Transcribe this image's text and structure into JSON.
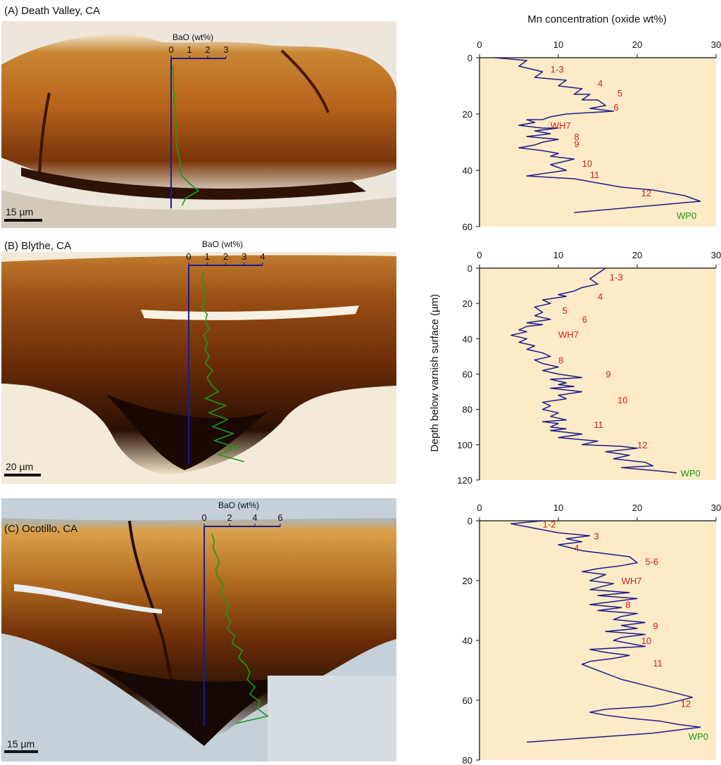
{
  "chart_data": [
    {
      "type": "line",
      "panel": "A",
      "title": "(A) Death Valley, CA",
      "xlabel": "Mn concentration (oxide wt%)",
      "ylabel": "",
      "xlim": [
        0,
        30
      ],
      "ylim": [
        0,
        60
      ],
      "y_inverted": true,
      "xticks": [
        0,
        10,
        20,
        30
      ],
      "yticks": [
        0,
        20,
        40,
        60
      ],
      "series": [
        {
          "name": "",
          "color": "#1c1c8c",
          "x": [
            2,
            6,
            5,
            8,
            7,
            11,
            10,
            13,
            12,
            14,
            13,
            15,
            16,
            14,
            17,
            11,
            9,
            8,
            6,
            7,
            5,
            8,
            10,
            7,
            9,
            6,
            10,
            8,
            7,
            5,
            8,
            10,
            9,
            12,
            9,
            11,
            6,
            12,
            14,
            18,
            22,
            26,
            28,
            24,
            20,
            12
          ],
          "y": [
            0,
            1,
            3,
            5,
            7,
            8,
            10,
            11,
            13,
            13,
            15,
            15,
            17,
            18,
            19,
            20,
            21,
            22,
            22,
            23,
            24,
            25,
            25,
            26,
            27,
            28,
            29,
            30,
            31,
            32,
            33,
            34,
            35,
            36,
            38,
            40,
            42,
            43,
            44,
            46,
            47,
            49,
            51,
            52,
            53,
            55
          ]
        }
      ],
      "labels": [
        {
          "text": "1-3",
          "x": 9,
          "y": 4
        },
        {
          "text": "4",
          "x": 15,
          "y": 9
        },
        {
          "text": "5",
          "x": 17.5,
          "y": 12.5
        },
        {
          "text": "6",
          "x": 17,
          "y": 17.5
        },
        {
          "text": "WH7",
          "x": 9,
          "y": 24
        },
        {
          "text": "8",
          "x": 12,
          "y": 28
        },
        {
          "text": "9",
          "x": 12,
          "y": 30.5
        },
        {
          "text": "10",
          "x": 13,
          "y": 37.5
        },
        {
          "text": "11",
          "x": 14,
          "y": 41.5
        },
        {
          "text": "12",
          "x": 20.5,
          "y": 48
        }
      ],
      "end_label": {
        "text": "WP0",
        "x": 25,
        "y": 56
      },
      "bao": {
        "label": "BaO (wt%)",
        "ticks": [
          0,
          1,
          2,
          3
        ],
        "xmax": 3,
        "scale_bar": "15 µm",
        "profile": [
          0.1,
          0.1,
          0.15,
          0.1,
          0.2,
          0.15,
          0.25,
          0.2,
          0.3,
          0.25,
          0.35,
          0.3,
          0.4,
          0.5,
          0.45,
          0.6,
          1.0,
          1.5,
          0.8,
          0.6
        ]
      }
    },
    {
      "type": "line",
      "panel": "B",
      "title": "(B) Blythe, CA",
      "xlabel": "",
      "ylabel": "Depth below varnish surface (µm)",
      "xlim": [
        0,
        30
      ],
      "ylim": [
        0,
        120
      ],
      "y_inverted": true,
      "xticks": [
        0,
        10,
        20,
        30
      ],
      "yticks": [
        0,
        20,
        40,
        60,
        80,
        100,
        120
      ],
      "series": [
        {
          "name": "",
          "color": "#1c1c8c",
          "x": [
            16,
            15,
            14,
            15,
            13,
            12,
            10,
            11,
            8,
            9,
            7,
            8,
            7,
            9,
            6,
            8,
            6,
            5,
            6,
            5,
            4,
            6,
            5,
            7,
            6,
            8,
            9,
            7,
            8,
            10,
            8,
            10,
            13,
            9,
            11,
            10,
            12,
            9,
            13,
            10,
            11,
            8,
            9,
            8,
            10,
            9,
            11,
            8,
            10,
            9,
            11,
            9,
            13,
            10,
            15,
            13,
            18,
            20,
            16,
            19,
            17,
            21,
            22,
            18,
            23,
            25
          ],
          "y": [
            0,
            3,
            6,
            9,
            11,
            13,
            15,
            16,
            18,
            20,
            22,
            25,
            27,
            29,
            31,
            32,
            33,
            35,
            36,
            37,
            38,
            40,
            42,
            44,
            46,
            48,
            50,
            52,
            54,
            56,
            58,
            60,
            62,
            63,
            65,
            66,
            67,
            68,
            70,
            72,
            74,
            76,
            78,
            80,
            82,
            84,
            86,
            87,
            88,
            90,
            91,
            92,
            94,
            96,
            98,
            100,
            101,
            102,
            104,
            106,
            108,
            110,
            112,
            113,
            115,
            116
          ]
        }
      ],
      "labels": [
        {
          "text": "1-3",
          "x": 16.5,
          "y": 5
        },
        {
          "text": "4",
          "x": 15,
          "y": 16
        },
        {
          "text": "5",
          "x": 10.5,
          "y": 24
        },
        {
          "text": "6",
          "x": 13,
          "y": 29
        },
        {
          "text": "WH7",
          "x": 10,
          "y": 37.5
        },
        {
          "text": "8",
          "x": 10,
          "y": 52
        },
        {
          "text": "9",
          "x": 16,
          "y": 60
        },
        {
          "text": "10",
          "x": 17.5,
          "y": 74.5
        },
        {
          "text": "11",
          "x": 14.5,
          "y": 88.5
        },
        {
          "text": "12",
          "x": 20,
          "y": 100
        }
      ],
      "end_label": {
        "text": "WP0",
        "x": 25.5,
        "y": 116
      },
      "bao": {
        "label": "BaO (wt%)",
        "ticks": [
          0,
          1,
          2,
          3,
          4
        ],
        "xmax": 4,
        "scale_bar": "20 µm",
        "profile": [
          0.8,
          0.7,
          0.9,
          0.8,
          0.9,
          0.7,
          1.0,
          0.9,
          1.1,
          0.8,
          1.0,
          0.9,
          1.1,
          0.9,
          1.3,
          1.0,
          1.2,
          1.6,
          0.9,
          2.0,
          1.1,
          2.1,
          1.3,
          2.4,
          1.4,
          2.6,
          1.6,
          3.0
        ]
      }
    },
    {
      "type": "line",
      "panel": "C",
      "title": "(C) Ocotillo, CA",
      "xlabel": "",
      "ylabel": "",
      "xlim": [
        0,
        30
      ],
      "ylim": [
        0,
        80
      ],
      "y_inverted": true,
      "xticks": [
        0,
        10,
        20,
        30
      ],
      "yticks": [
        0,
        20,
        40,
        60,
        80
      ],
      "series": [
        {
          "name": "",
          "color": "#1c1c8c",
          "x": [
            8,
            4,
            6,
            10,
            14,
            11,
            13,
            10,
            13,
            16,
            19,
            20,
            18,
            15,
            13,
            16,
            14,
            17,
            14,
            19,
            15,
            20,
            17,
            14,
            18,
            15,
            20,
            18,
            17,
            21,
            18,
            20,
            16,
            21,
            18,
            17,
            21,
            14,
            16,
            19,
            17,
            14,
            13,
            16,
            18,
            21,
            24,
            27,
            24,
            22,
            16,
            14,
            16,
            19,
            23,
            25,
            28,
            22,
            6
          ],
          "y": [
            0,
            1,
            2,
            4,
            5,
            6,
            7,
            8,
            10,
            11,
            12,
            14,
            15,
            16,
            17,
            18,
            20,
            21,
            23,
            24,
            25,
            26,
            27,
            28,
            29,
            30,
            31,
            32,
            33,
            34,
            35,
            36,
            37,
            38,
            39,
            40,
            42,
            43,
            44,
            45,
            46,
            47,
            48,
            51,
            53,
            55,
            57,
            59,
            61,
            62,
            63,
            64,
            65,
            66,
            67,
            68,
            69,
            71,
            74
          ]
        }
      ],
      "labels": [
        {
          "text": "1-2",
          "x": 8,
          "y": 1
        },
        {
          "text": "3",
          "x": 14.5,
          "y": 5
        },
        {
          "text": "4",
          "x": 12,
          "y": 9
        },
        {
          "text": "5-6",
          "x": 21,
          "y": 13.5
        },
        {
          "text": "WH7",
          "x": 18,
          "y": 20
        },
        {
          "text": "8",
          "x": 18.5,
          "y": 28
        },
        {
          "text": "9",
          "x": 22,
          "y": 35
        },
        {
          "text": "10",
          "x": 20.5,
          "y": 40
        },
        {
          "text": "11",
          "x": 22,
          "y": 47.5
        },
        {
          "text": "12",
          "x": 25.5,
          "y": 61
        }
      ],
      "end_label": {
        "text": "WP0",
        "x": 26.5,
        "y": 72
      },
      "bao": {
        "label": "BaO (wt%)",
        "ticks": [
          0,
          2,
          4,
          6
        ],
        "xmax": 6,
        "scale_bar": "15 µm",
        "profile": [
          0.6,
          0.8,
          0.7,
          1.0,
          1.2,
          0.9,
          1.1,
          1.5,
          1.3,
          1.6,
          2.0,
          1.7,
          2.1,
          1.8,
          2.4,
          2.2,
          3.0,
          2.7,
          3.3,
          3.6,
          3.4,
          4.0,
          3.6,
          4.4,
          4.2,
          5.0,
          2.5
        ]
      }
    }
  ]
}
